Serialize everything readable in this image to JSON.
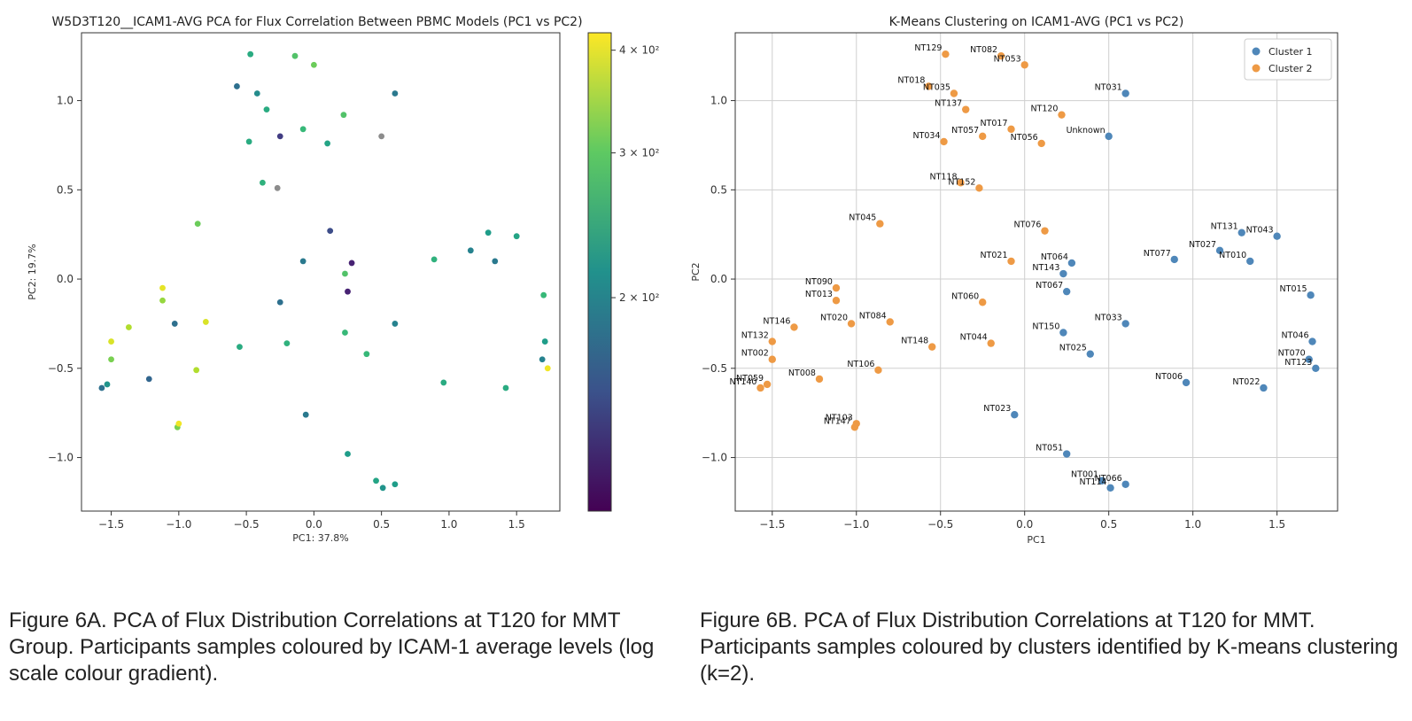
{
  "chart_data": [
    {
      "type": "scatter",
      "title": "W5D3T120__ICAM1-AVG PCA for Flux Correlation Between PBMC Models (PC1 vs PC2)",
      "xlabel": "PC1: 37.8%",
      "ylabel": "PC2: 19.7%",
      "xlim": [
        -1.72,
        1.82
      ],
      "ylim": [
        -1.3,
        1.38
      ],
      "xticks": [
        -1.5,
        -1.0,
        -0.5,
        0.0,
        0.5,
        1.0,
        1.5
      ],
      "yticks": [
        -1.0,
        -0.5,
        0.0,
        0.5,
        1.0
      ],
      "grid": false,
      "colorscale": "viridis",
      "color_scale_type": "log",
      "colorbar": {
        "min": 110,
        "max": 420,
        "ticks": [
          {
            "value": 200,
            "label": "2 × 10²"
          },
          {
            "value": 300,
            "label": "3 × 10²"
          },
          {
            "value": 400,
            "label": "4 × 10²"
          }
        ]
      },
      "points": [
        {
          "x": -1.57,
          "y": -0.61,
          "c": 180
        },
        {
          "x": -1.53,
          "y": -0.59,
          "c": 220
        },
        {
          "x": -1.5,
          "y": -0.35,
          "c": 390
        },
        {
          "x": -1.5,
          "y": -0.45,
          "c": 320
        },
        {
          "x": -1.37,
          "y": -0.27,
          "c": 360
        },
        {
          "x": -1.22,
          "y": -0.56,
          "c": 170
        },
        {
          "x": -1.12,
          "y": -0.05,
          "c": 400
        },
        {
          "x": -1.12,
          "y": -0.12,
          "c": 340
        },
        {
          "x": -1.03,
          "y": -0.25,
          "c": 180
        },
        {
          "x": -1.01,
          "y": -0.83,
          "c": 320
        },
        {
          "x": -1.0,
          "y": -0.81,
          "c": 410
        },
        {
          "x": -0.87,
          "y": -0.51,
          "c": 360
        },
        {
          "x": -0.86,
          "y": 0.31,
          "c": 310
        },
        {
          "x": -0.8,
          "y": -0.24,
          "c": 390
        },
        {
          "x": -0.57,
          "y": 1.08,
          "c": 180
        },
        {
          "x": -0.55,
          "y": -0.38,
          "c": 250
        },
        {
          "x": -0.48,
          "y": 0.77,
          "c": 250
        },
        {
          "x": -0.47,
          "y": 1.26,
          "c": 250
        },
        {
          "x": -0.42,
          "y": 1.04,
          "c": 210
        },
        {
          "x": -0.38,
          "y": 0.54,
          "c": 260
        },
        {
          "x": -0.35,
          "y": 0.95,
          "c": 250
        },
        {
          "x": -0.27,
          "y": 0.51,
          "c": null
        },
        {
          "x": -0.25,
          "y": 0.8,
          "c": 140
        },
        {
          "x": -0.25,
          "y": -0.13,
          "c": 180
        },
        {
          "x": -0.2,
          "y": -0.36,
          "c": 260
        },
        {
          "x": -0.14,
          "y": 1.25,
          "c": 290
        },
        {
          "x": -0.08,
          "y": 0.84,
          "c": 270
        },
        {
          "x": -0.08,
          "y": 0.1,
          "c": 190
        },
        {
          "x": -0.06,
          "y": -0.76,
          "c": 190
        },
        {
          "x": 0.0,
          "y": 1.2,
          "c": 310
        },
        {
          "x": 0.1,
          "y": 0.76,
          "c": 240
        },
        {
          "x": 0.12,
          "y": 0.27,
          "c": 150
        },
        {
          "x": 0.22,
          "y": 0.92,
          "c": 290
        },
        {
          "x": 0.23,
          "y": 0.03,
          "c": 290
        },
        {
          "x": 0.23,
          "y": -0.3,
          "c": 270
        },
        {
          "x": 0.25,
          "y": -0.07,
          "c": 125
        },
        {
          "x": 0.25,
          "y": -0.98,
          "c": 230
        },
        {
          "x": 0.28,
          "y": 0.09,
          "c": 125
        },
        {
          "x": 0.39,
          "y": -0.42,
          "c": 270
        },
        {
          "x": 0.46,
          "y": -1.13,
          "c": 240
        },
        {
          "x": 0.5,
          "y": 0.8,
          "c": null
        },
        {
          "x": 0.51,
          "y": -1.17,
          "c": 220
        },
        {
          "x": 0.6,
          "y": 1.04,
          "c": 190
        },
        {
          "x": 0.6,
          "y": -0.25,
          "c": 200
        },
        {
          "x": 0.6,
          "y": -1.15,
          "c": 230
        },
        {
          "x": 0.89,
          "y": 0.11,
          "c": 260
        },
        {
          "x": 0.96,
          "y": -0.58,
          "c": 250
        },
        {
          "x": 1.16,
          "y": 0.16,
          "c": 200
        },
        {
          "x": 1.29,
          "y": 0.26,
          "c": 230
        },
        {
          "x": 1.34,
          "y": 0.1,
          "c": 190
        },
        {
          "x": 1.42,
          "y": -0.61,
          "c": 250
        },
        {
          "x": 1.5,
          "y": 0.24,
          "c": 240
        },
        {
          "x": 1.69,
          "y": -0.45,
          "c": 200
        },
        {
          "x": 1.7,
          "y": -0.09,
          "c": 270
        },
        {
          "x": 1.71,
          "y": -0.35,
          "c": 230
        },
        {
          "x": 1.73,
          "y": -0.5,
          "c": 410
        }
      ]
    },
    {
      "type": "scatter",
      "title": "K-Means Clustering on ICAM1-AVG (PC1 vs PC2)",
      "xlabel": "PC1",
      "ylabel": "PC2",
      "xlim": [
        -1.72,
        1.86
      ],
      "ylim": [
        -1.3,
        1.38
      ],
      "xticks": [
        -1.5,
        -1.0,
        -0.5,
        0.0,
        0.5,
        1.0,
        1.5
      ],
      "yticks": [
        -1.0,
        -0.5,
        0.0,
        0.5,
        1.0
      ],
      "grid": true,
      "legend_position": "top-right",
      "series": [
        {
          "name": "Cluster 1",
          "color": "#4f87b9",
          "points": [
            {
              "x": 0.6,
              "y": 1.04,
              "label": "NT031"
            },
            {
              "x": 0.5,
              "y": 0.8,
              "label": "Unknown"
            },
            {
              "x": 1.29,
              "y": 0.26,
              "label": "NT131"
            },
            {
              "x": 1.5,
              "y": 0.24,
              "label": "NT043"
            },
            {
              "x": 1.16,
              "y": 0.16,
              "label": "NT027"
            },
            {
              "x": 1.34,
              "y": 0.1,
              "label": "NT010"
            },
            {
              "x": 0.89,
              "y": 0.11,
              "label": "NT077"
            },
            {
              "x": 0.28,
              "y": 0.09,
              "label": "NT064"
            },
            {
              "x": 0.23,
              "y": 0.03,
              "label": "NT143"
            },
            {
              "x": 0.25,
              "y": -0.07,
              "label": "NT067"
            },
            {
              "x": 1.7,
              "y": -0.09,
              "label": "NT015"
            },
            {
              "x": 0.6,
              "y": -0.25,
              "label": "NT033"
            },
            {
              "x": 0.23,
              "y": -0.3,
              "label": "NT150"
            },
            {
              "x": 1.71,
              "y": -0.35,
              "label": "NT046"
            },
            {
              "x": 0.39,
              "y": -0.42,
              "label": "NT025"
            },
            {
              "x": 1.69,
              "y": -0.45,
              "label": "NT070"
            },
            {
              "x": 1.73,
              "y": -0.5,
              "label": "NT123"
            },
            {
              "x": 0.96,
              "y": -0.58,
              "label": "NT006"
            },
            {
              "x": 1.42,
              "y": -0.61,
              "label": "NT022"
            },
            {
              "x": -0.06,
              "y": -0.76,
              "label": "NT023"
            },
            {
              "x": 0.25,
              "y": -0.98,
              "label": "NT051"
            },
            {
              "x": 0.46,
              "y": -1.13,
              "label": "NT001"
            },
            {
              "x": 0.6,
              "y": -1.15,
              "label": "NT066"
            },
            {
              "x": 0.51,
              "y": -1.17,
              "label": "NT114"
            }
          ]
        },
        {
          "name": "Cluster 2",
          "color": "#ee9a45",
          "points": [
            {
              "x": -0.47,
              "y": 1.26,
              "label": "NT129"
            },
            {
              "x": -0.14,
              "y": 1.25,
              "label": "NT082"
            },
            {
              "x": 0.0,
              "y": 1.2,
              "label": "NT053"
            },
            {
              "x": -0.57,
              "y": 1.08,
              "label": "NT018"
            },
            {
              "x": -0.42,
              "y": 1.04,
              "label": "NT035"
            },
            {
              "x": -0.35,
              "y": 0.95,
              "label": "NT137"
            },
            {
              "x": 0.22,
              "y": 0.92,
              "label": "NT120"
            },
            {
              "x": -0.08,
              "y": 0.84,
              "label": "NT017"
            },
            {
              "x": -0.25,
              "y": 0.8,
              "label": "NT057"
            },
            {
              "x": -0.48,
              "y": 0.77,
              "label": "NT034"
            },
            {
              "x": 0.1,
              "y": 0.76,
              "label": "NT056"
            },
            {
              "x": -0.38,
              "y": 0.54,
              "label": "NT118"
            },
            {
              "x": -0.27,
              "y": 0.51,
              "label": "NT152"
            },
            {
              "x": -0.86,
              "y": 0.31,
              "label": "NT045"
            },
            {
              "x": 0.12,
              "y": 0.27,
              "label": "NT076"
            },
            {
              "x": -0.08,
              "y": 0.1,
              "label": "NT021"
            },
            {
              "x": -1.12,
              "y": -0.05,
              "label": "NT090"
            },
            {
              "x": -1.12,
              "y": -0.12,
              "label": "NT013"
            },
            {
              "x": -0.25,
              "y": -0.13,
              "label": "NT060"
            },
            {
              "x": -0.8,
              "y": -0.24,
              "label": "NT084"
            },
            {
              "x": -1.03,
              "y": -0.25,
              "label": "NT020"
            },
            {
              "x": -1.37,
              "y": -0.27,
              "label": "NT146"
            },
            {
              "x": -1.5,
              "y": -0.35,
              "label": "NT132"
            },
            {
              "x": -0.2,
              "y": -0.36,
              "label": "NT044"
            },
            {
              "x": -0.55,
              "y": -0.38,
              "label": "NT148"
            },
            {
              "x": -1.5,
              "y": -0.45,
              "label": "NT002"
            },
            {
              "x": -0.87,
              "y": -0.51,
              "label": "NT106"
            },
            {
              "x": -1.22,
              "y": -0.56,
              "label": "NT008"
            },
            {
              "x": -1.53,
              "y": -0.59,
              "label": "NT059"
            },
            {
              "x": -1.57,
              "y": -0.61,
              "label": "NT140"
            },
            {
              "x": -1.0,
              "y": -0.81,
              "label": "NT103"
            },
            {
              "x": -1.01,
              "y": -0.83,
              "label": "NT147"
            }
          ]
        }
      ]
    }
  ],
  "captions": {
    "left": "Figure 6A. PCA of Flux Distribution Correlations at T120 for MMT Group. Participants samples coloured by ICAM-1 average levels (log scale colour gradient).",
    "right": "Figure 6B. PCA of Flux Distribution Correlations at T120 for MMT. Participants samples coloured by clusters identified by K-means clustering (k=2)."
  }
}
